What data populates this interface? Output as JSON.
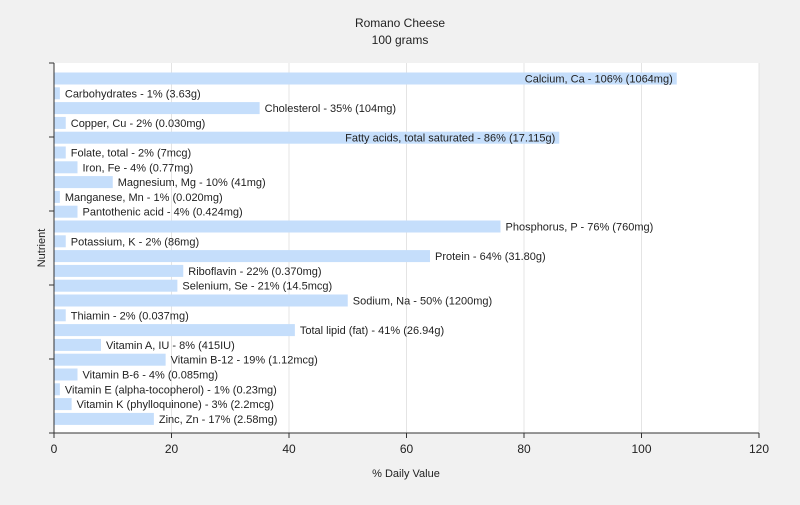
{
  "chart_data": {
    "type": "bar",
    "orientation": "horizontal",
    "title": "Romano Cheese",
    "subtitle": "100 grams",
    "xlabel": "% Daily Value",
    "ylabel": "Nutrient",
    "xlim": [
      0,
      120
    ],
    "xticks": [
      0,
      20,
      40,
      60,
      80,
      100,
      120
    ],
    "grid": true,
    "bar_color": "#c5defb",
    "categories": [
      "Calcium, Ca",
      "Carbohydrates",
      "Cholesterol",
      "Copper, Cu",
      "Fatty acids, total saturated",
      "Folate, total",
      "Iron, Fe",
      "Magnesium, Mg",
      "Manganese, Mn",
      "Pantothenic acid",
      "Phosphorus, P",
      "Potassium, K",
      "Protein",
      "Riboflavin",
      "Selenium, Se",
      "Sodium, Na",
      "Thiamin",
      "Total lipid (fat)",
      "Vitamin A, IU",
      "Vitamin B-12",
      "Vitamin B-6",
      "Vitamin E (alpha-tocopherol)",
      "Vitamin K (phylloquinone)",
      "Zinc, Zn"
    ],
    "values": [
      106,
      1,
      35,
      2,
      86,
      2,
      4,
      10,
      1,
      4,
      76,
      2,
      64,
      22,
      21,
      50,
      2,
      41,
      8,
      19,
      4,
      1,
      3,
      17
    ],
    "amounts": [
      "1064mg",
      "3.63g",
      "104mg",
      "0.030mg",
      "17.115g",
      "7mcg",
      "0.77mg",
      "41mg",
      "0.020mg",
      "0.424mg",
      "760mg",
      "86mg",
      "31.80g",
      "0.370mg",
      "14.5mcg",
      "1200mg",
      "0.037mg",
      "26.94g",
      "415IU",
      "1.12mcg",
      "0.085mg",
      "0.23mg",
      "2.2mcg",
      "2.58mg"
    ],
    "labels": [
      "Calcium, Ca - 106% (1064mg)",
      "Carbohydrates - 1% (3.63g)",
      "Cholesterol - 35% (104mg)",
      "Copper, Cu - 2% (0.030mg)",
      "Fatty acids, total saturated - 86% (17.115g)",
      "Folate, total - 2% (7mcg)",
      "Iron, Fe - 4% (0.77mg)",
      "Magnesium, Mg - 10% (41mg)",
      "Manganese, Mn - 1% (0.020mg)",
      "Pantothenic acid - 4% (0.424mg)",
      "Phosphorus, P - 76% (760mg)",
      "Potassium, K - 2% (86mg)",
      "Protein - 64% (31.80g)",
      "Riboflavin - 22% (0.370mg)",
      "Selenium, Se - 21% (14.5mcg)",
      "Sodium, Na - 50% (1200mg)",
      "Thiamin - 2% (0.037mg)",
      "Total lipid (fat) - 41% (26.94g)",
      "Vitamin A, IU - 8% (415IU)",
      "Vitamin B-12 - 19% (1.12mcg)",
      "Vitamin B-6 - 4% (0.085mg)",
      "Vitamin E (alpha-tocopherol) - 1% (0.23mg)",
      "Vitamin K (phylloquinone) - 3% (2.2mcg)",
      "Zinc, Zn - 17% (2.58mg)"
    ]
  }
}
